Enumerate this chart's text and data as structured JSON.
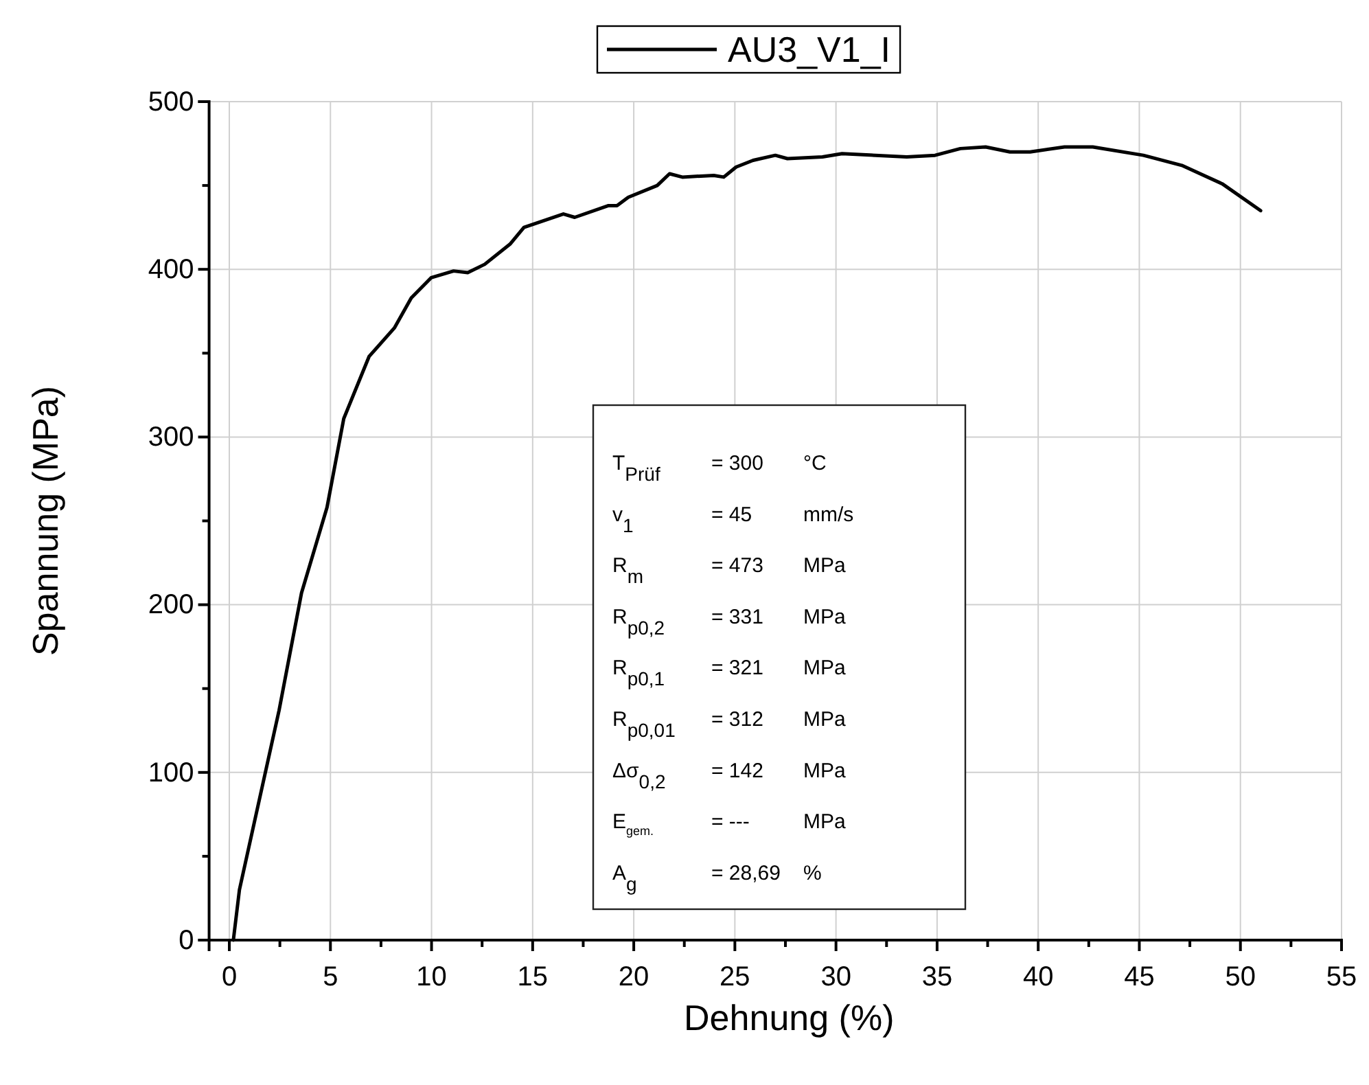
{
  "chart_data": {
    "type": "line",
    "xlabel": "Dehnung (%)",
    "ylabel": "Spannung (MPa)",
    "xlim": [
      -1,
      55
    ],
    "ylim": [
      0,
      500
    ],
    "xticks": [
      0,
      {
        "value": 2.5,
        "label": null
      },
      5,
      {
        "value": 7.5,
        "label": null
      },
      10,
      {
        "value": 12.5,
        "label": null
      },
      15,
      {
        "value": 17.5,
        "label": null
      },
      20,
      {
        "value": 22.5,
        "label": null
      },
      25,
      {
        "value": 27.5,
        "label": null
      },
      30,
      {
        "value": 32.5,
        "label": null
      },
      35,
      {
        "value": 37.5,
        "label": null
      },
      40,
      {
        "value": 42.5,
        "label": null
      },
      45,
      {
        "value": 47.5,
        "label": null
      },
      50,
      {
        "value": 52.5,
        "label": null
      },
      55
    ],
    "yticks": [
      0,
      {
        "value": 50,
        "label": null
      },
      100,
      {
        "value": 150,
        "label": null
      },
      200,
      {
        "value": 250,
        "label": null
      },
      300,
      {
        "value": 350,
        "label": null
      },
      400,
      {
        "value": 450,
        "label": null
      },
      500
    ],
    "grid": true,
    "legend": "top",
    "marker": "none",
    "line_style": "solid",
    "series": [
      {
        "name": "AU3_V1_I",
        "color": "#000000",
        "x": [
          0.2,
          0.5,
          2.46,
          3.57,
          4.83,
          5.66,
          6.91,
          8.16,
          9.0,
          9.98,
          11.09,
          11.79,
          12.63,
          13.88,
          14.57,
          16.52,
          17.08,
          18.75,
          19.17,
          19.73,
          21.16,
          21.77,
          22.4,
          23.96,
          24.45,
          25.06,
          25.9,
          27.0,
          27.6,
          29.33,
          30.3,
          33.5,
          34.9,
          36.15,
          37.4,
          38.6,
          39.6,
          41.3,
          42.7,
          45.2,
          47.1,
          49.1,
          51.0
        ],
        "values": [
          0,
          30,
          137,
          207,
          258,
          311,
          348,
          365,
          383,
          395,
          399,
          398,
          403,
          415,
          425,
          433,
          431,
          438,
          438,
          443,
          450,
          457,
          455,
          456,
          455,
          461,
          465,
          468,
          466,
          467,
          469,
          467,
          468,
          472,
          473,
          470,
          470,
          473,
          473,
          468,
          462,
          451,
          435
        ]
      }
    ],
    "annotations": [
      "T$_{Prüf}$",
      "= 300",
      "°C",
      "v$_{1}$",
      "= 45",
      "mm/s",
      "R$_{m}$",
      "= 473",
      "MPa",
      "R$_{p0,2}$",
      "= 331",
      "MPa",
      "R$_{p0,1}$",
      "= 321",
      "MPa",
      "R$_{p0,01}$",
      "= 312",
      "MPa",
      "Δσ$_{0,2}$",
      "= 142",
      "MPa",
      "E$_{gem.}$",
      "= ---",
      "MPa",
      "A$_{g}$",
      "= 28,69",
      "%"
    ]
  }
}
